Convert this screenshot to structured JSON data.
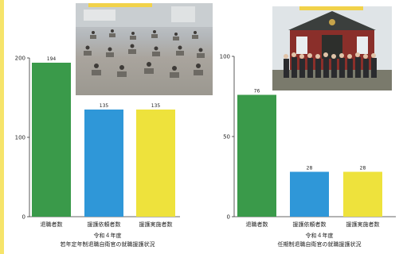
{
  "chart_data": [
    {
      "type": "bar",
      "categories": [
        "退職者数",
        "援護依頼者数",
        "援護実施者数"
      ],
      "values": [
        194,
        135,
        135
      ],
      "colors": [
        "#3a9a4a",
        "#2f97d8",
        "#eee23c"
      ],
      "yticks": [
        0,
        100,
        200
      ],
      "ylim": [
        0,
        200
      ],
      "title_line1": "令和４年度",
      "title_line2": "若年定年制退職自衛官の就職援護状況"
    },
    {
      "type": "bar",
      "categories": [
        "退職者数",
        "援護依頼者数",
        "援護実施者数"
      ],
      "values": [
        76,
        28,
        28
      ],
      "colors": [
        "#3a9a4a",
        "#2f97d8",
        "#eee23c"
      ],
      "yticks": [
        0,
        50,
        100
      ],
      "ylim": [
        0,
        100
      ],
      "title_line1": "令和４年度",
      "title_line2": "任期制退職自衛官の就職援護状況"
    }
  ],
  "photos": {
    "left": "exam-hall-photo",
    "right": "group-photo-building"
  }
}
